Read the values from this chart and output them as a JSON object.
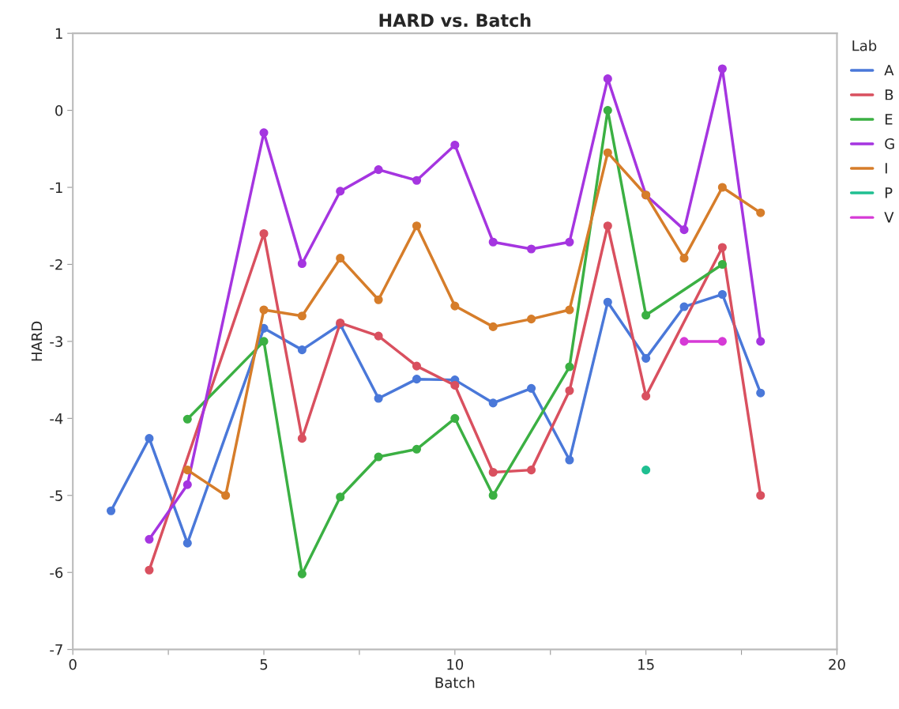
{
  "chart_data": {
    "type": "line",
    "title": "HARD vs. Batch",
    "xlabel": "Batch",
    "ylabel": "HARD",
    "legend_title": "Lab",
    "legend": "right",
    "marker": "circle",
    "line_style": "solid",
    "grid": false,
    "xlim": [
      0,
      20
    ],
    "xticks": [
      0,
      {
        "value": 2.5,
        "label": null
      },
      5,
      {
        "value": 7.5,
        "label": null
      },
      10,
      {
        "value": 12.5,
        "label": null
      },
      15,
      {
        "value": 17.5,
        "label": null
      },
      20
    ],
    "ylim": [
      -7,
      1
    ],
    "yticks": [
      -7,
      -6,
      -5,
      -4,
      -3,
      -2,
      -1,
      0,
      1
    ],
    "series": [
      {
        "name": "A",
        "color": "#4a78d9",
        "x": [
          1,
          2,
          3,
          5,
          6,
          7,
          8,
          9,
          10,
          11,
          12,
          13,
          14,
          15,
          16,
          17,
          18
        ],
        "values": [
          -5.2,
          -4.26,
          -5.62,
          -2.83,
          -3.11,
          -2.78,
          -3.74,
          -3.49,
          -3.5,
          -3.8,
          -3.61,
          -4.54,
          -2.49,
          -3.22,
          -2.55,
          -2.39,
          -3.67
        ]
      },
      {
        "name": "B",
        "color": "#d9505f",
        "x": [
          2,
          5,
          6,
          7,
          8,
          9,
          10,
          11,
          12,
          13,
          14,
          15,
          17,
          18
        ],
        "values": [
          -5.97,
          -1.6,
          -4.26,
          -2.76,
          -2.93,
          -3.32,
          -3.57,
          -4.7,
          -4.67,
          -3.64,
          -1.5,
          -3.71,
          -1.78,
          -5.0
        ]
      },
      {
        "name": "E",
        "color": "#3bb043",
        "x": [
          3,
          5,
          6,
          7,
          8,
          9,
          10,
          11,
          13,
          14,
          15,
          17
        ],
        "values": [
          -4.01,
          -3.0,
          -6.02,
          -5.02,
          -4.5,
          -4.4,
          -4.0,
          -5.0,
          -3.33,
          0.0,
          -2.66,
          -2.0
        ]
      },
      {
        "name": "G",
        "color": "#a535e0",
        "x": [
          2,
          3,
          5,
          6,
          7,
          8,
          9,
          10,
          11,
          12,
          13,
          14,
          15,
          16,
          17,
          18
        ],
        "values": [
          -5.57,
          -4.86,
          -0.29,
          -1.99,
          -1.05,
          -0.77,
          -0.91,
          -0.45,
          -1.71,
          -1.8,
          -1.71,
          0.41,
          -1.1,
          -1.55,
          0.54,
          -3.0
        ]
      },
      {
        "name": "I",
        "color": "#d67d2a",
        "x": [
          3,
          4,
          5,
          6,
          7,
          8,
          9,
          10,
          11,
          12,
          13,
          14,
          15,
          16,
          17,
          18
        ],
        "values": [
          -4.67,
          -5.0,
          -2.59,
          -2.67,
          -1.92,
          -2.46,
          -1.5,
          -2.54,
          -2.81,
          -2.71,
          -2.59,
          -0.55,
          -1.1,
          -1.92,
          -1.0,
          -1.33
        ]
      },
      {
        "name": "P",
        "color": "#1fbf91",
        "x": [
          15
        ],
        "values": [
          -4.67
        ]
      },
      {
        "name": "V",
        "color": "#d63ad6",
        "x": [
          16,
          17
        ],
        "values": [
          -3.0,
          -3.0
        ]
      }
    ]
  }
}
